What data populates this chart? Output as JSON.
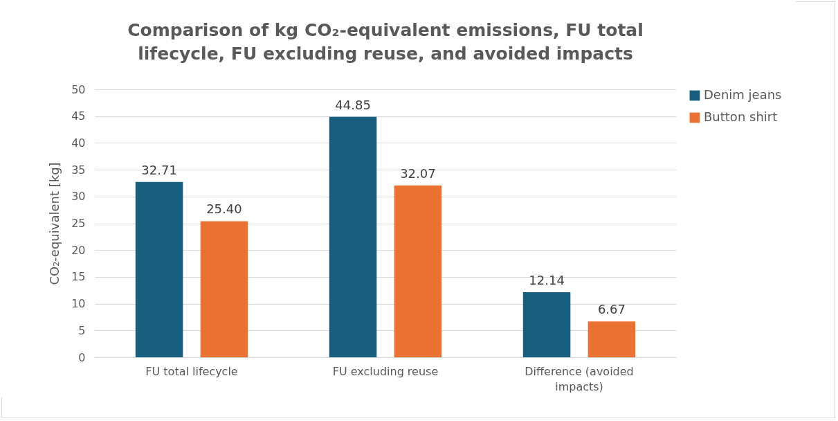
{
  "chart_data": {
    "type": "bar",
    "title": "Comparison of kg CO₂-equivalent emissions, FU total lifecycle, FU excluding reuse, and avoided impacts",
    "ylabel": "CO₂-equivalent [kg]",
    "categories": [
      "FU total lifecycle",
      "FU excluding reuse",
      "Difference (avoided impacts)"
    ],
    "series": [
      {
        "name": "Denim jeans",
        "color": "#175e7f",
        "values": [
          32.71,
          44.85,
          12.14
        ],
        "value_labels": [
          "32.71",
          "44.85",
          "12.14"
        ]
      },
      {
        "name": "Button shirt",
        "color": "#e97132",
        "values": [
          25.4,
          32.07,
          6.67
        ],
        "value_labels": [
          "25.40",
          "32.07",
          "6.67"
        ]
      }
    ],
    "ylim": [
      0,
      50
    ],
    "yticks": [
      0,
      5,
      10,
      15,
      20,
      25,
      30,
      35,
      40,
      45,
      50
    ],
    "grid": "y",
    "legend": "right"
  }
}
